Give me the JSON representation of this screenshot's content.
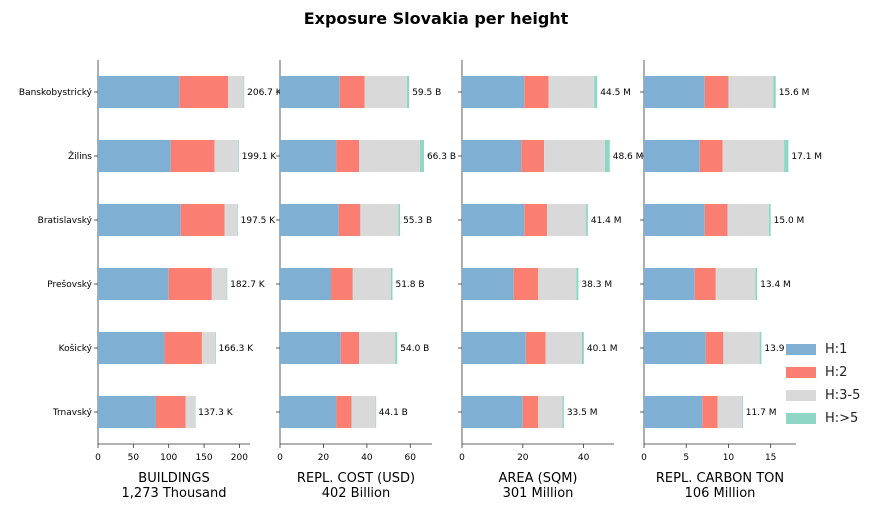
{
  "chart_data": {
    "type": "bar",
    "title": "Exposure Slovakia per height",
    "categories": [
      "Banskobystrický",
      "Žilins",
      "Bratislavský",
      "Prešovský",
      "Košický",
      "Trnavský"
    ],
    "series_names": [
      "H:1",
      "H:2",
      "H:3-5",
      "H:>5"
    ],
    "colors": [
      "#7fb0d4",
      "#fa7f72",
      "#d9d9d9",
      "#8fd6c6"
    ],
    "legend_position": "lower-right",
    "grid": false,
    "panels": [
      {
        "xlabel": "BUILDINGS",
        "subtitle": "1,273 Thousand",
        "xlim": [
          0,
          215
        ],
        "xticks": [
          "0",
          "50",
          "100",
          "150",
          "200"
        ],
        "tick_values": [
          0,
          50,
          100,
          150,
          200
        ],
        "series": [
          {
            "name": "H:1",
            "values": [
              115,
              103,
              117,
              100,
              94,
              82
            ]
          },
          {
            "name": "H:2",
            "values": [
              69,
              62,
              62,
              61,
              53,
              42
            ]
          },
          {
            "name": "H:3-5",
            "values": [
              22,
              33,
              18,
              21,
              19,
              13
            ]
          },
          {
            "name": "H:>5",
            "values": [
              0.7,
              1.1,
              0.5,
              0.7,
              0.3,
              0.3
            ]
          }
        ],
        "totals": [
          "206.7 K",
          "199.1 K",
          "197.5 K",
          "182.7 K",
          "166.3 K",
          "137.3 K"
        ]
      },
      {
        "xlabel": "REPL. COST (USD)",
        "subtitle": "402 Billion",
        "xlim": [
          0,
          70
        ],
        "xticks": [
          "0",
          "20",
          "40",
          "60"
        ],
        "tick_values": [
          0,
          20,
          40,
          60
        ],
        "series": [
          {
            "name": "H:1",
            "values": [
              27.5,
              26,
              27,
              23.5,
              28,
              26
            ]
          },
          {
            "name": "H:2",
            "values": [
              11.5,
              10.5,
              10,
              10,
              8.5,
              7
            ]
          },
          {
            "name": "H:3-5",
            "values": [
              19.5,
              28,
              17.5,
              17.5,
              16.5,
              11
            ]
          },
          {
            "name": "H:>5",
            "values": [
              1,
              1.8,
              0.8,
              0.8,
              1,
              0.1
            ]
          }
        ],
        "totals": [
          "59.5 B",
          "66.3 B",
          "55.3 B",
          "51.8 B",
          "54.0 B",
          "44.1 B"
        ]
      },
      {
        "xlabel": "AREA (SQM)",
        "subtitle": "301 Million",
        "xlim": [
          0,
          50
        ],
        "xticks": [
          "0",
          "20",
          "40"
        ],
        "tick_values": [
          0,
          20,
          40
        ],
        "series": [
          {
            "name": "H:1",
            "values": [
              20.5,
              19.5,
              20.5,
              17,
              21,
              20
            ]
          },
          {
            "name": "H:2",
            "values": [
              8,
              7.5,
              7.5,
              8,
              6.5,
              5
            ]
          },
          {
            "name": "H:3-5",
            "values": [
              15,
              20,
              12.8,
              12.6,
              11.9,
              8
            ]
          },
          {
            "name": "H:>5",
            "values": [
              1,
              1.6,
              0.6,
              0.7,
              0.7,
              0.5
            ]
          }
        ],
        "totals": [
          "44.5 M",
          "48.6 M",
          "41.4 M",
          "38.3 M",
          "40.1 M",
          "33.5 M"
        ]
      },
      {
        "xlabel": "REPL. CARBON TON",
        "subtitle": "106 Million",
        "xlim": [
          0,
          18
        ],
        "xticks": [
          "0",
          "5",
          "10",
          "15"
        ],
        "tick_values": [
          0,
          5,
          10,
          15
        ],
        "series": [
          {
            "name": "H:1",
            "values": [
              7.2,
              6.6,
              7.2,
              6,
              7.3,
              6.9
            ]
          },
          {
            "name": "H:2",
            "values": [
              2.8,
              2.7,
              2.7,
              2.5,
              2.1,
              1.8
            ]
          },
          {
            "name": "H:3-5",
            "values": [
              5.3,
              7.3,
              4.9,
              4.7,
              4.3,
              2.9
            ]
          },
          {
            "name": "H:>5",
            "values": [
              0.3,
              0.5,
              0.2,
              0.2,
              0.2,
              0.1
            ]
          }
        ],
        "totals": [
          "15.6 M",
          "17.1 M",
          "15.0 M",
          "13.4 M",
          "13.9 M",
          "11.7 M"
        ]
      }
    ]
  }
}
